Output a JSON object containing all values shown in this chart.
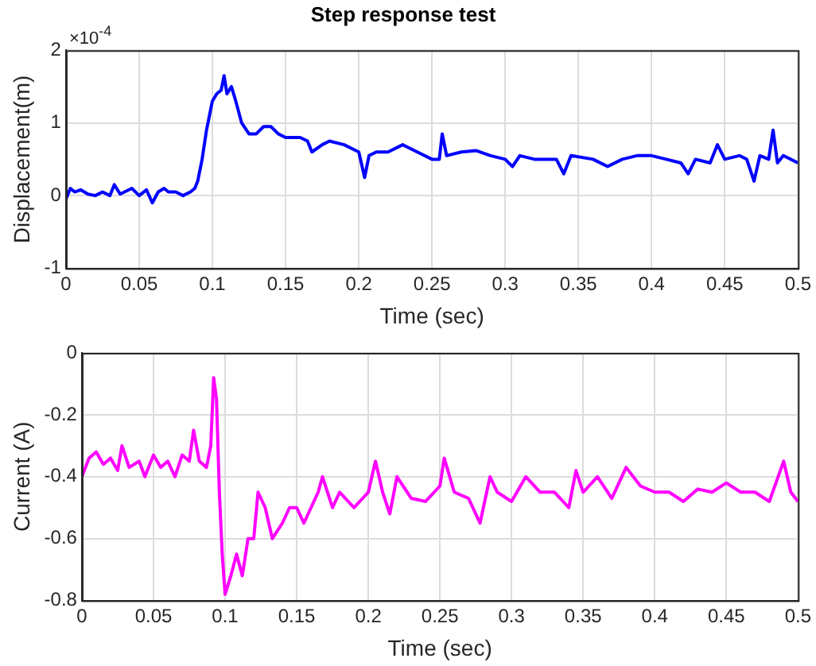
{
  "chart_data": [
    {
      "type": "line",
      "title": "Step response test",
      "xlabel": "Time (sec)",
      "ylabel": "Displacement(m)",
      "annotations": [
        "×10$^{-4}$"
      ],
      "color": "#0000ff",
      "grid": true,
      "legend": false,
      "xlim": [
        0,
        0.5
      ],
      "ylim": [
        -1,
        2
      ],
      "xticks": [
        0,
        0.05,
        0.1,
        0.15,
        0.2,
        0.25,
        0.3,
        0.35,
        0.4,
        0.45,
        0.5
      ],
      "yticks": [
        -1,
        0,
        1,
        2
      ],
      "x": [
        0,
        0.003,
        0.006,
        0.01,
        0.015,
        0.02,
        0.025,
        0.03,
        0.033,
        0.037,
        0.04,
        0.045,
        0.05,
        0.055,
        0.059,
        0.063,
        0.067,
        0.07,
        0.075,
        0.08,
        0.085,
        0.088,
        0.09,
        0.093,
        0.096,
        0.1,
        0.103,
        0.106,
        0.108,
        0.11,
        0.113,
        0.116,
        0.12,
        0.125,
        0.13,
        0.135,
        0.14,
        0.145,
        0.15,
        0.155,
        0.16,
        0.165,
        0.168,
        0.175,
        0.18,
        0.19,
        0.2,
        0.204,
        0.207,
        0.212,
        0.22,
        0.23,
        0.24,
        0.25,
        0.255,
        0.257,
        0.26,
        0.27,
        0.28,
        0.29,
        0.3,
        0.305,
        0.31,
        0.32,
        0.335,
        0.34,
        0.345,
        0.36,
        0.37,
        0.38,
        0.39,
        0.4,
        0.41,
        0.42,
        0.425,
        0.43,
        0.44,
        0.445,
        0.45,
        0.46,
        0.465,
        0.47,
        0.474,
        0.48,
        0.483,
        0.486,
        0.49,
        0.5
      ],
      "values": [
        -0.05,
        0.1,
        0.05,
        0.08,
        0.02,
        0,
        0.05,
        0,
        0.15,
        0.02,
        0.05,
        0.1,
        0,
        0.08,
        -0.1,
        0.05,
        0.1,
        0.05,
        0.05,
        0,
        0.05,
        0.1,
        0.2,
        0.5,
        0.9,
        1.3,
        1.4,
        1.45,
        1.65,
        1.4,
        1.5,
        1.3,
        1,
        0.85,
        0.85,
        0.95,
        0.95,
        0.85,
        0.8,
        0.8,
        0.8,
        0.75,
        0.6,
        0.7,
        0.75,
        0.7,
        0.6,
        0.25,
        0.55,
        0.6,
        0.6,
        0.7,
        0.6,
        0.5,
        0.5,
        0.85,
        0.55,
        0.6,
        0.62,
        0.55,
        0.5,
        0.4,
        0.55,
        0.5,
        0.5,
        0.3,
        0.55,
        0.5,
        0.4,
        0.5,
        0.55,
        0.55,
        0.5,
        0.45,
        0.3,
        0.5,
        0.45,
        0.7,
        0.5,
        0.55,
        0.5,
        0.2,
        0.55,
        0.5,
        0.9,
        0.45,
        0.55,
        0.45
      ]
    },
    {
      "type": "line",
      "xlabel": "Time (sec)",
      "ylabel": "Current (A)",
      "color": "#ff00ff",
      "grid": true,
      "legend": false,
      "xlim": [
        0,
        0.5
      ],
      "ylim": [
        -0.8,
        0
      ],
      "xticks": [
        0,
        0.05,
        0.1,
        0.15,
        0.2,
        0.25,
        0.3,
        0.35,
        0.4,
        0.45,
        0.5
      ],
      "yticks": [
        -0.8,
        -0.6,
        -0.4,
        -0.2,
        0
      ],
      "x": [
        0,
        0.005,
        0.01,
        0.015,
        0.02,
        0.025,
        0.028,
        0.033,
        0.04,
        0.044,
        0.05,
        0.055,
        0.06,
        0.065,
        0.07,
        0.075,
        0.078,
        0.082,
        0.087,
        0.09,
        0.092,
        0.094,
        0.096,
        0.098,
        0.1,
        0.104,
        0.108,
        0.112,
        0.116,
        0.12,
        0.123,
        0.128,
        0.133,
        0.14,
        0.145,
        0.15,
        0.155,
        0.16,
        0.165,
        0.168,
        0.175,
        0.18,
        0.19,
        0.2,
        0.205,
        0.21,
        0.215,
        0.22,
        0.23,
        0.24,
        0.25,
        0.253,
        0.26,
        0.27,
        0.278,
        0.285,
        0.29,
        0.3,
        0.31,
        0.32,
        0.33,
        0.34,
        0.345,
        0.35,
        0.36,
        0.37,
        0.38,
        0.39,
        0.4,
        0.41,
        0.42,
        0.43,
        0.44,
        0.45,
        0.46,
        0.47,
        0.48,
        0.49,
        0.495,
        0.5
      ],
      "values": [
        -0.4,
        -0.34,
        -0.32,
        -0.36,
        -0.34,
        -0.38,
        -0.3,
        -0.37,
        -0.35,
        -0.4,
        -0.33,
        -0.37,
        -0.35,
        -0.4,
        -0.33,
        -0.35,
        -0.25,
        -0.35,
        -0.37,
        -0.3,
        -0.08,
        -0.15,
        -0.45,
        -0.65,
        -0.78,
        -0.72,
        -0.65,
        -0.72,
        -0.6,
        -0.6,
        -0.45,
        -0.5,
        -0.6,
        -0.55,
        -0.5,
        -0.5,
        -0.55,
        -0.5,
        -0.45,
        -0.4,
        -0.5,
        -0.45,
        -0.5,
        -0.45,
        -0.35,
        -0.45,
        -0.52,
        -0.4,
        -0.47,
        -0.48,
        -0.43,
        -0.34,
        -0.45,
        -0.47,
        -0.55,
        -0.4,
        -0.45,
        -0.48,
        -0.4,
        -0.45,
        -0.45,
        -0.5,
        -0.38,
        -0.45,
        -0.4,
        -0.47,
        -0.37,
        -0.43,
        -0.45,
        -0.45,
        -0.48,
        -0.44,
        -0.45,
        -0.42,
        -0.45,
        -0.45,
        -0.48,
        -0.35,
        -0.45,
        -0.48
      ]
    }
  ]
}
